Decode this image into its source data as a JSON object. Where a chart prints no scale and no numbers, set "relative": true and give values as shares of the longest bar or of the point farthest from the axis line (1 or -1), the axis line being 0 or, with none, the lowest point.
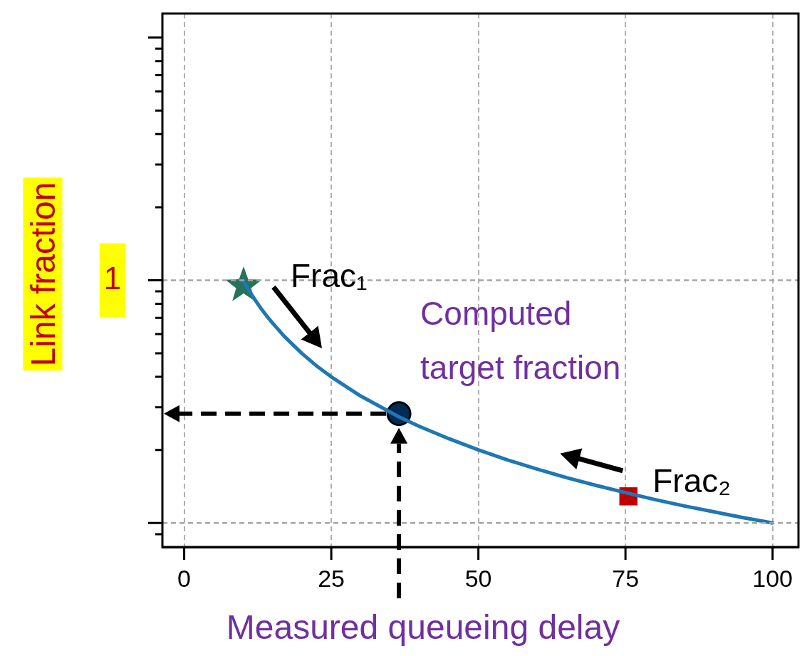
{
  "chart_data": {
    "type": "line",
    "xlabel": "Measured queueing delay",
    "ylabel": "Link fraction",
    "relative": true,
    "xlim": [
      -3.7,
      104.4
    ],
    "xticks": [
      0,
      25,
      50,
      75,
      100
    ],
    "grid": "x",
    "legend": false,
    "ref_lines": [
      {
        "axis": "y",
        "value": 1,
        "label": "1",
        "color": "#a6a6a6",
        "line_style": "dashed"
      },
      {
        "axis": "y",
        "value": 0.09,
        "color": "#a6a6a6",
        "line_style": "dashed"
      }
    ],
    "series": [
      {
        "type": "line",
        "color": "#1f77b4",
        "marker": "none",
        "x": [
          10,
          11,
          12,
          13,
          14,
          15,
          17,
          20,
          22.5,
          25,
          30,
          36.5,
          40,
          45,
          50,
          55,
          60,
          65,
          70,
          75,
          80,
          85,
          90,
          95,
          100
        ],
        "values": [
          1,
          0.962,
          0.928,
          0.896,
          0.867,
          0.84,
          0.79,
          0.726,
          0.679,
          0.638,
          0.566,
          0.488,
          0.452,
          0.406,
          0.364,
          0.326,
          0.292,
          0.26,
          0.231,
          0.204,
          0.178,
          0.154,
          0.132,
          0.11,
          0.09
        ]
      },
      {
        "type": "scatter",
        "color": "#24735a",
        "marker": "star",
        "x": [
          10.1
        ],
        "values": [
          0.98
        ]
      },
      {
        "type": "scatter",
        "color": "#002b55",
        "marker": "circle",
        "x": [
          36.5
        ],
        "values": [
          0.5
        ]
      },
      {
        "type": "scatter",
        "color": "#c00000",
        "marker": "square",
        "x": [
          75.5
        ],
        "values": [
          0.19
        ]
      }
    ],
    "annotations": [
      {
        "text": "Frac₁",
        "x": 10.1,
        "y": 0.98
      },
      {
        "text": "Computed\ntarget fraction",
        "x": 36.5,
        "y": 0.5
      },
      {
        "text": "Frac₂",
        "x": 75.5,
        "y": 0.19
      }
    ]
  }
}
